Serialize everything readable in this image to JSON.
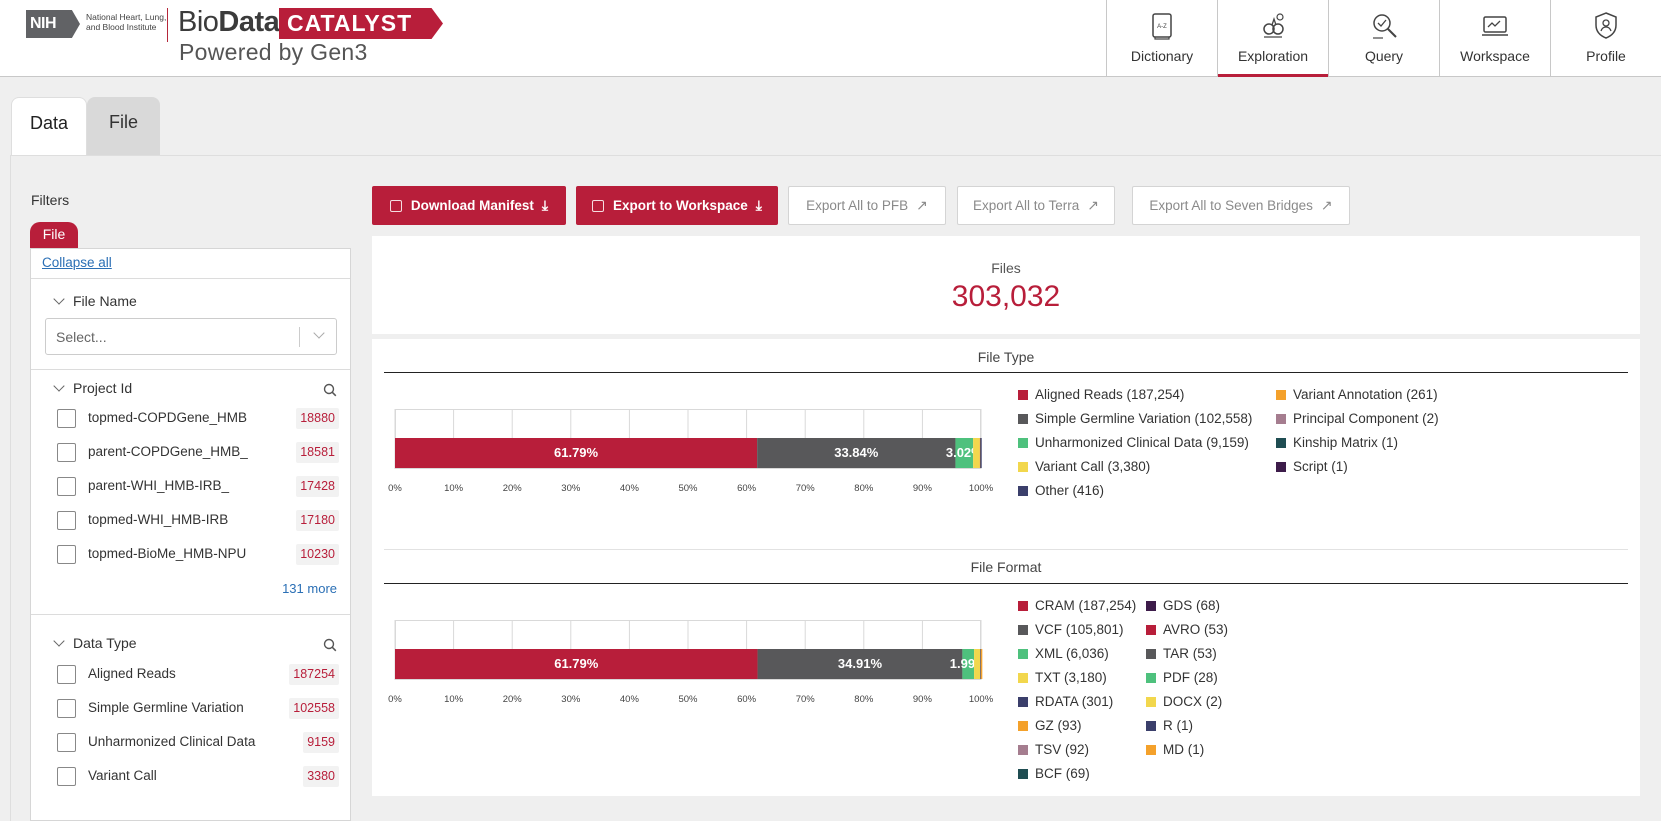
{
  "header": {
    "nih": "NIH",
    "nih_institute": "National Heart, Lung, and Blood Institute",
    "brand_bio": "Bio",
    "brand_data": "Data",
    "brand_catalyst": "CATALYST",
    "brand_powered": "Powered by Gen3",
    "nav": [
      {
        "label": "Dictionary",
        "icon": "dictionary-icon",
        "active": false
      },
      {
        "label": "Exploration",
        "icon": "exploration-icon",
        "active": true
      },
      {
        "label": "Query",
        "icon": "query-icon",
        "active": false
      },
      {
        "label": "Workspace",
        "icon": "workspace-icon",
        "active": false
      },
      {
        "label": "Profile",
        "icon": "profile-icon",
        "active": false
      }
    ]
  },
  "tabs": [
    "Data",
    "File"
  ],
  "filters": {
    "title": "Filters",
    "badge": "File",
    "collapse_all": "Collapse all",
    "file_name": {
      "title": "File Name",
      "placeholder": "Select..."
    },
    "project_id": {
      "title": "Project Id",
      "items": [
        {
          "label": "topmed-COPDGene_HMB",
          "count": "18880"
        },
        {
          "label": "parent-COPDGene_HMB_",
          "count": "18581"
        },
        {
          "label": "parent-WHI_HMB-IRB_",
          "count": "17428"
        },
        {
          "label": "topmed-WHI_HMB-IRB",
          "count": "17180"
        },
        {
          "label": "topmed-BioMe_HMB-NPU",
          "count": "10230"
        }
      ],
      "more": "131 more"
    },
    "data_type": {
      "title": "Data Type",
      "items": [
        {
          "label": "Aligned Reads",
          "count": "187254"
        },
        {
          "label": "Simple Germline Variation",
          "count": "102558"
        },
        {
          "label": "Unharmonized Clinical Data",
          "count": "9159"
        },
        {
          "label": "Variant Call",
          "count": "3380"
        }
      ]
    }
  },
  "buttons": {
    "download_manifest": "Download Manifest",
    "export_workspace": "Export to Workspace",
    "export_pfb": "Export All to PFB",
    "export_terra": "Export All to Terra",
    "export_sevenbridges": "Export All to Seven Bridges"
  },
  "summary": {
    "label": "Files",
    "value": "303,032"
  },
  "colors": {
    "brand": "#b81e3a",
    "segments": [
      "#b81e3a",
      "#58585a",
      "#4ec17d",
      "#f2d74d",
      "#f4a12b"
    ]
  },
  "chart_data": [
    {
      "type": "bar",
      "orientation": "horizontal-stacked",
      "title": "File Type",
      "xlim": [
        0,
        100
      ],
      "xticks": [
        "0%",
        "10%",
        "20%",
        "30%",
        "40%",
        "50%",
        "60%",
        "70%",
        "80%",
        "90%",
        "100%"
      ],
      "segments": [
        {
          "name": "Aligned Reads",
          "count": 187254,
          "percent": 61.79,
          "label": "61.79%",
          "color": "#b81e3a"
        },
        {
          "name": "Simple Germline Variation",
          "count": 102558,
          "percent": 33.84,
          "label": "33.84%",
          "color": "#58585a"
        },
        {
          "name": "Unharmonized Clinical Data",
          "count": 9159,
          "percent": 3.02,
          "label": "3.02%",
          "color": "#4ec17d"
        },
        {
          "name": "Variant Call",
          "count": 3380,
          "percent": 1.12,
          "label": "",
          "color": "#f2d74d"
        },
        {
          "name": "Variant Annotation",
          "count": 261,
          "percent": 0.09,
          "label": "",
          "color": "#f4a12b"
        },
        {
          "name": "Other",
          "count": 416,
          "percent": 0.14,
          "label": "",
          "color": "#3b3f6b"
        }
      ],
      "legend": [
        {
          "text": "Aligned Reads  (187,254)",
          "color": "#b81e3a"
        },
        {
          "text": "Simple Germline Variation  (102,558)",
          "color": "#58585a"
        },
        {
          "text": "Unharmonized Clinical Data  (9,159)",
          "color": "#4ec17d"
        },
        {
          "text": "Variant Call  (3,380)",
          "color": "#f2d74d"
        },
        {
          "text": "Other  (416)",
          "color": "#3b3f6b"
        },
        {
          "text": "Variant Annotation  (261)",
          "color": "#f4a12b"
        },
        {
          "text": "Principal Component  (2)",
          "color": "#a57d8f"
        },
        {
          "text": "Kinship Matrix  (1)",
          "color": "#1f4d52"
        },
        {
          "text": "Script  (1)",
          "color": "#3d1c4a"
        }
      ]
    },
    {
      "type": "bar",
      "orientation": "horizontal-stacked",
      "title": "File Format",
      "xlim": [
        0,
        100
      ],
      "xticks": [
        "0%",
        "10%",
        "20%",
        "30%",
        "40%",
        "50%",
        "60%",
        "70%",
        "80%",
        "90%",
        "100%"
      ],
      "segments": [
        {
          "name": "CRAM",
          "count": 187254,
          "percent": 61.79,
          "label": "61.79%",
          "color": "#b81e3a"
        },
        {
          "name": "VCF",
          "count": 105801,
          "percent": 34.91,
          "label": "34.91%",
          "color": "#58585a"
        },
        {
          "name": "XML",
          "count": 6036,
          "percent": 1.99,
          "label": "1.99%",
          "color": "#4ec17d"
        },
        {
          "name": "TXT",
          "count": 3180,
          "percent": 1.05,
          "label": "",
          "color": "#f2d74d"
        },
        {
          "name": "RDATA",
          "count": 301,
          "percent": 0.1,
          "label": "",
          "color": "#3b3f6b"
        },
        {
          "name": "GZ",
          "count": 93,
          "percent": 0.03,
          "label": "",
          "color": "#f4a12b"
        }
      ],
      "legend": [
        {
          "text": "CRAM  (187,254)",
          "color": "#b81e3a"
        },
        {
          "text": "VCF  (105,801)",
          "color": "#58585a"
        },
        {
          "text": "XML  (6,036)",
          "color": "#4ec17d"
        },
        {
          "text": "TXT  (3,180)",
          "color": "#f2d74d"
        },
        {
          "text": "RDATA  (301)",
          "color": "#3b3f6b"
        },
        {
          "text": "GZ  (93)",
          "color": "#f4a12b"
        },
        {
          "text": "TSV  (92)",
          "color": "#a57d8f"
        },
        {
          "text": "BCF  (69)",
          "color": "#1f4d52"
        },
        {
          "text": "GDS  (68)",
          "color": "#3d1c4a"
        },
        {
          "text": "AVRO  (53)",
          "color": "#b81e3a"
        },
        {
          "text": "TAR  (53)",
          "color": "#58585a"
        },
        {
          "text": "PDF  (28)",
          "color": "#4ec17d"
        },
        {
          "text": "DOCX  (2)",
          "color": "#f2d74d"
        },
        {
          "text": "R  (1)",
          "color": "#3b3f6b"
        },
        {
          "text": "MD  (1)",
          "color": "#f4a12b"
        }
      ]
    }
  ]
}
